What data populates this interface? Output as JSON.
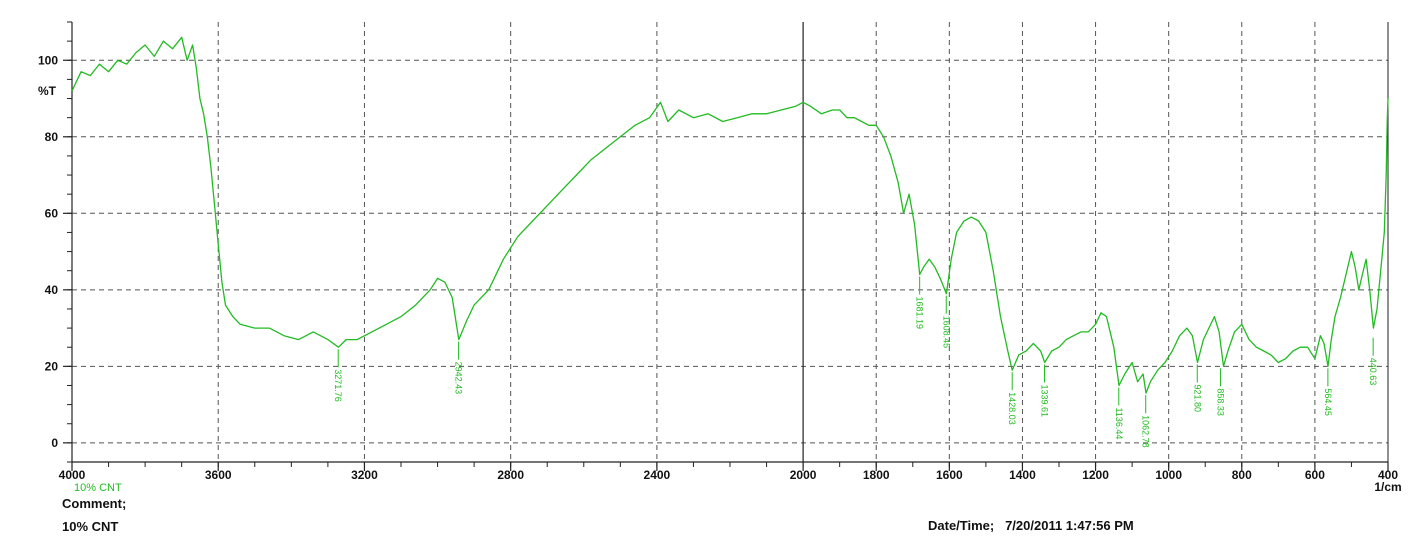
{
  "chart_data": {
    "type": "line",
    "title": "",
    "xlabel": "",
    "ylabel": "%T",
    "x_unit_label": "1/cm",
    "xlim": [
      4000,
      400
    ],
    "ylim": [
      -5,
      110
    ],
    "x_reversed": true,
    "grid": true,
    "x_ticks": [
      4000,
      3600,
      3200,
      2800,
      2400,
      2000,
      1800,
      1600,
      1400,
      1200,
      1000,
      800,
      600,
      400
    ],
    "y_ticks": [
      0,
      20,
      40,
      60,
      80,
      100
    ],
    "series": [
      {
        "name": "10% CNT",
        "color": "#22bb22",
        "points": [
          [
            4000,
            92
          ],
          [
            3975,
            97
          ],
          [
            3950,
            96
          ],
          [
            3925,
            99
          ],
          [
            3900,
            97
          ],
          [
            3875,
            100
          ],
          [
            3850,
            99
          ],
          [
            3825,
            102
          ],
          [
            3800,
            104
          ],
          [
            3775,
            101
          ],
          [
            3750,
            105
          ],
          [
            3725,
            103
          ],
          [
            3700,
            106
          ],
          [
            3685,
            100
          ],
          [
            3670,
            104
          ],
          [
            3660,
            98
          ],
          [
            3650,
            90
          ],
          [
            3640,
            86
          ],
          [
            3630,
            80
          ],
          [
            3620,
            72
          ],
          [
            3610,
            62
          ],
          [
            3600,
            52
          ],
          [
            3590,
            42
          ],
          [
            3580,
            36
          ],
          [
            3560,
            33
          ],
          [
            3540,
            31
          ],
          [
            3500,
            30
          ],
          [
            3460,
            30
          ],
          [
            3420,
            28
          ],
          [
            3380,
            27
          ],
          [
            3340,
            29
          ],
          [
            3300,
            27
          ],
          [
            3271,
            25
          ],
          [
            3250,
            27
          ],
          [
            3220,
            27
          ],
          [
            3180,
            29
          ],
          [
            3140,
            31
          ],
          [
            3100,
            33
          ],
          [
            3060,
            36
          ],
          [
            3020,
            40
          ],
          [
            3000,
            43
          ],
          [
            2980,
            42
          ],
          [
            2960,
            38
          ],
          [
            2942,
            27
          ],
          [
            2920,
            32
          ],
          [
            2900,
            36
          ],
          [
            2860,
            40
          ],
          [
            2820,
            48
          ],
          [
            2780,
            54
          ],
          [
            2740,
            58
          ],
          [
            2700,
            62
          ],
          [
            2660,
            66
          ],
          [
            2620,
            70
          ],
          [
            2580,
            74
          ],
          [
            2540,
            77
          ],
          [
            2500,
            80
          ],
          [
            2460,
            83
          ],
          [
            2420,
            85
          ],
          [
            2390,
            89
          ],
          [
            2370,
            84
          ],
          [
            2340,
            87
          ],
          [
            2300,
            85
          ],
          [
            2260,
            86
          ],
          [
            2220,
            84
          ],
          [
            2180,
            85
          ],
          [
            2140,
            86
          ],
          [
            2100,
            86
          ],
          [
            2060,
            87
          ],
          [
            2020,
            88
          ],
          [
            2000,
            89
          ],
          [
            1980,
            88
          ],
          [
            1950,
            86
          ],
          [
            1920,
            87
          ],
          [
            1900,
            87
          ],
          [
            1880,
            85
          ],
          [
            1860,
            85
          ],
          [
            1840,
            84
          ],
          [
            1820,
            83
          ],
          [
            1800,
            83
          ],
          [
            1780,
            80
          ],
          [
            1760,
            75
          ],
          [
            1740,
            68
          ],
          [
            1725,
            60
          ],
          [
            1710,
            65
          ],
          [
            1695,
            57
          ],
          [
            1681,
            44
          ],
          [
            1670,
            46
          ],
          [
            1655,
            48
          ],
          [
            1640,
            46
          ],
          [
            1625,
            43
          ],
          [
            1608,
            39
          ],
          [
            1595,
            48
          ],
          [
            1580,
            55
          ],
          [
            1560,
            58
          ],
          [
            1540,
            59
          ],
          [
            1520,
            58
          ],
          [
            1500,
            55
          ],
          [
            1480,
            45
          ],
          [
            1460,
            33
          ],
          [
            1440,
            24
          ],
          [
            1428,
            19
          ],
          [
            1410,
            23
          ],
          [
            1390,
            24
          ],
          [
            1370,
            26
          ],
          [
            1350,
            24
          ],
          [
            1339,
            21
          ],
          [
            1320,
            24
          ],
          [
            1300,
            25
          ],
          [
            1280,
            27
          ],
          [
            1260,
            28
          ],
          [
            1240,
            29
          ],
          [
            1220,
            29
          ],
          [
            1200,
            31
          ],
          [
            1185,
            34
          ],
          [
            1170,
            33
          ],
          [
            1150,
            25
          ],
          [
            1136,
            15
          ],
          [
            1120,
            18
          ],
          [
            1100,
            21
          ],
          [
            1085,
            16
          ],
          [
            1070,
            18
          ],
          [
            1062,
            13
          ],
          [
            1050,
            16
          ],
          [
            1030,
            19
          ],
          [
            1010,
            21
          ],
          [
            990,
            24
          ],
          [
            970,
            28
          ],
          [
            950,
            30
          ],
          [
            935,
            28
          ],
          [
            921,
            21
          ],
          [
            905,
            27
          ],
          [
            890,
            30
          ],
          [
            875,
            33
          ],
          [
            862,
            29
          ],
          [
            850,
            20
          ],
          [
            838,
            24
          ],
          [
            820,
            29
          ],
          [
            800,
            31
          ],
          [
            780,
            27
          ],
          [
            760,
            25
          ],
          [
            740,
            24
          ],
          [
            720,
            23
          ],
          [
            700,
            21
          ],
          [
            680,
            22
          ],
          [
            660,
            24
          ],
          [
            640,
            25
          ],
          [
            620,
            25
          ],
          [
            600,
            22
          ],
          [
            585,
            28
          ],
          [
            575,
            26
          ],
          [
            564,
            20
          ],
          [
            555,
            27
          ],
          [
            545,
            33
          ],
          [
            530,
            38
          ],
          [
            515,
            44
          ],
          [
            500,
            50
          ],
          [
            490,
            46
          ],
          [
            480,
            40
          ],
          [
            470,
            44
          ],
          [
            460,
            48
          ],
          [
            450,
            40
          ],
          [
            440,
            30
          ],
          [
            430,
            35
          ],
          [
            420,
            45
          ],
          [
            410,
            55
          ],
          [
            405,
            70
          ],
          [
            402,
            85
          ],
          [
            400,
            90
          ]
        ]
      }
    ],
    "peaks": [
      {
        "x": 3271.76,
        "label": "3271.76",
        "y": 25
      },
      {
        "x": 2942.43,
        "label": "2942.43",
        "y": 27
      },
      {
        "x": 1681.19,
        "label": "1681.19",
        "y": 44
      },
      {
        "x": 1608.45,
        "label": "1608.45",
        "y": 39
      },
      {
        "x": 1428.03,
        "label": "1428.03",
        "y": 19
      },
      {
        "x": 1339.61,
        "label": "1339.61",
        "y": 21
      },
      {
        "x": 1136.44,
        "label": "1136.44",
        "y": 15
      },
      {
        "x": 1062.78,
        "label": "1062.78",
        "y": 13
      },
      {
        "x": 921.8,
        "label": "921.80",
        "y": 21
      },
      {
        "x": 858.33,
        "label": "858.33",
        "y": 20
      },
      {
        "x": 564.45,
        "label": "564.45",
        "y": 20
      },
      {
        "x": 440.63,
        "label": "440.63",
        "y": 28
      }
    ]
  },
  "legend": {
    "label": "10% CNT"
  },
  "comment": {
    "label": "Comment;",
    "value": "10% CNT"
  },
  "datetime": {
    "label": "Date/Time;",
    "value": "7/20/2011 1:47:56 PM"
  }
}
